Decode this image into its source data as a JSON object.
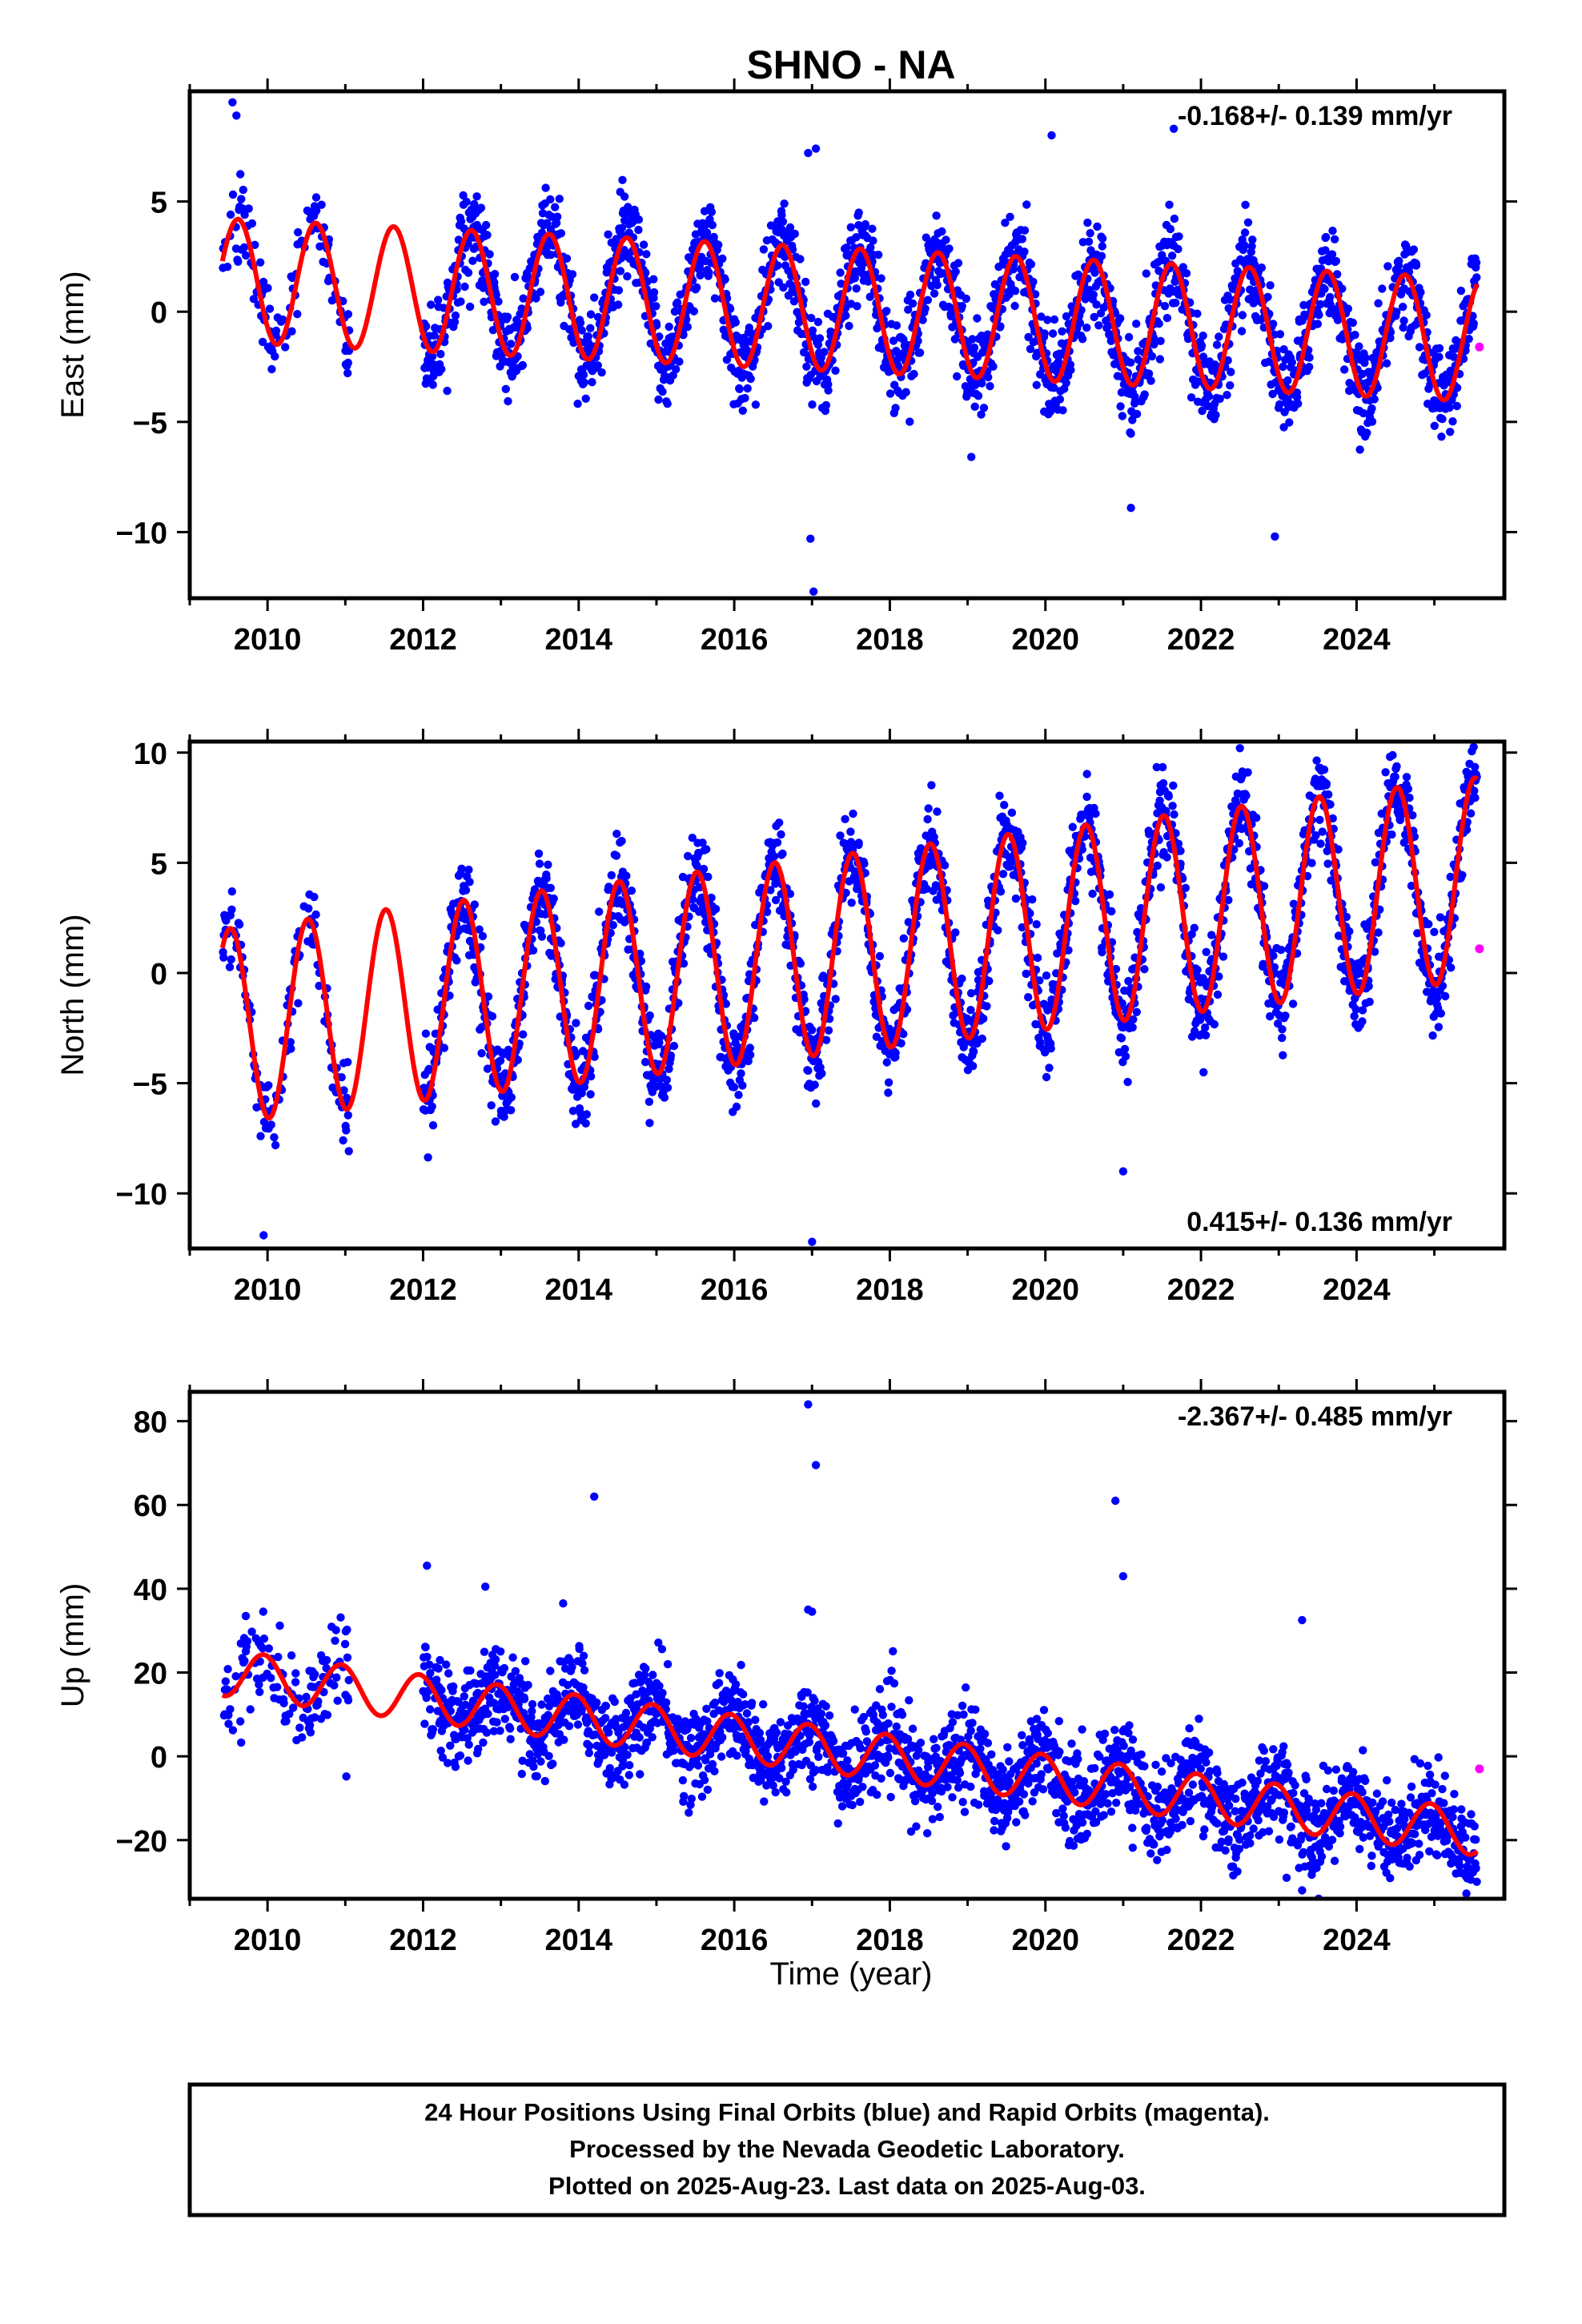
{
  "page": {
    "title": "SHNO - NA",
    "xlabel": "Time (year)",
    "footer_lines": [
      "24 Hour Positions Using Final Orbits (blue) and Rapid Orbits (magenta).",
      "Processed by the Nevada Geodetic Laboratory.",
      "Plotted on 2025-Aug-23. Last data on 2025-Aug-03."
    ]
  },
  "colors": {
    "final_orbits": "#0000ff",
    "rapid_orbits": "#ff00ff",
    "fit": "#ff0000",
    "frame": "#000000",
    "background": "#ffffff"
  },
  "chart_data": [
    {
      "type": "scatter",
      "ylabel": "East (mm)",
      "rate_text": "-0.168+/- 0.139 mm/yr",
      "rate_position": "top-right",
      "xlim": [
        2009.0,
        2025.9
      ],
      "ylim": [
        -13,
        10
      ],
      "xticks": [
        2010,
        2012,
        2014,
        2016,
        2018,
        2020,
        2022,
        2024
      ],
      "yticks": [
        -10,
        -5,
        0,
        5
      ],
      "ytick_labels": [
        "−10",
        "−5",
        "0",
        "5"
      ],
      "grid": false,
      "data_start": 2009.42,
      "data_end": 2025.55,
      "gaps": [
        [
          2011.05,
          2012.0
        ]
      ],
      "fit": {
        "name": "fit",
        "intercept_2009": 1.5,
        "rate_mm_per_yr": -0.168,
        "annual_amp_start": 2.8,
        "annual_amp_end": 2.8,
        "phase_peak": 0.62
      },
      "rapid_points": [
        [
          2025.58,
          -1.6
        ]
      ],
      "outliers": [
        [
          2009.55,
          9.5
        ],
        [
          2009.6,
          8.9
        ],
        [
          2016.95,
          7.2
        ],
        [
          2017.05,
          7.4
        ],
        [
          2020.08,
          8.0
        ],
        [
          2021.65,
          8.3
        ],
        [
          2017.02,
          -12.7
        ],
        [
          2016.98,
          -10.3
        ],
        [
          2021.1,
          -8.9
        ],
        [
          2022.95,
          -10.2
        ]
      ]
    },
    {
      "type": "scatter",
      "ylabel": "North (mm)",
      "rate_text": "0.415+/- 0.136 mm/yr",
      "rate_position": "bottom-right",
      "xlim": [
        2009.0,
        2025.9
      ],
      "ylim": [
        -12.5,
        10.5
      ],
      "xticks": [
        2010,
        2012,
        2014,
        2016,
        2018,
        2020,
        2022,
        2024
      ],
      "yticks": [
        -10,
        -5,
        0,
        5,
        10
      ],
      "ytick_labels": [
        "−10",
        "−5",
        "0",
        "5",
        "10"
      ],
      "grid": false,
      "data_start": 2009.42,
      "data_end": 2025.55,
      "gaps": [
        [
          2011.05,
          2012.0
        ]
      ],
      "fit": {
        "name": "fit",
        "intercept_2009": -2.6,
        "rate_mm_per_yr": 0.415,
        "annual_amp_start": 4.4,
        "annual_amp_end": 4.6,
        "phase_peak": 0.52
      },
      "rapid_points": [
        [
          2025.58,
          1.1
        ]
      ],
      "outliers": [
        [
          2017.0,
          -12.2
        ],
        [
          2021.0,
          -9.0
        ],
        [
          2009.95,
          -11.9
        ],
        [
          2022.5,
          10.2
        ]
      ]
    },
    {
      "type": "scatter",
      "ylabel": "Up (mm)",
      "rate_text": "-2.367+/- 0.485 mm/yr",
      "rate_position": "top-right",
      "xlim": [
        2009.0,
        2025.9
      ],
      "ylim": [
        -34,
        87
      ],
      "xticks": [
        2010,
        2012,
        2014,
        2016,
        2018,
        2020,
        2022,
        2024
      ],
      "yticks": [
        -20,
        0,
        20,
        40,
        60,
        80
      ],
      "ytick_labels": [
        "−20",
        "0",
        "20",
        "40",
        "60",
        "80"
      ],
      "grid": false,
      "data_start": 2009.42,
      "data_end": 2025.55,
      "gaps": [
        [
          2011.05,
          2012.0
        ]
      ],
      "fit": {
        "name": "fit",
        "intercept_2009": 21.0,
        "rate_mm_per_yr": -2.367,
        "annual_amp_start": 5.5,
        "annual_amp_end": 5.5,
        "phase_peak": 0.95
      },
      "rapid_points": [
        [
          2025.58,
          -3.0
        ]
      ],
      "outliers": [
        [
          2016.95,
          84.0
        ],
        [
          2017.05,
          69.5
        ],
        [
          2014.2,
          62.0
        ],
        [
          2020.9,
          61.0
        ],
        [
          2021.0,
          43.0
        ],
        [
          2012.05,
          45.5
        ],
        [
          2012.8,
          40.5
        ],
        [
          2013.8,
          36.5
        ],
        [
          2016.95,
          35.0
        ],
        [
          2017.0,
          34.5
        ],
        [
          2023.3,
          32.5
        ],
        [
          2023.3,
          -32.0
        ],
        [
          2023.1,
          -29.0
        ]
      ]
    }
  ]
}
